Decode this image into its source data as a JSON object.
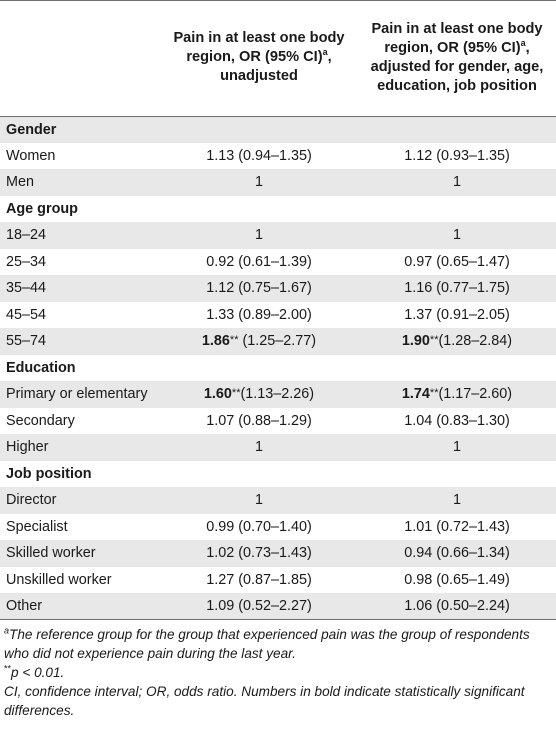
{
  "header": {
    "col1": "",
    "col2": "Pain in at least one body region, OR (95% CI)",
    "col2_sup": "a",
    "col2_tail": ", unadjusted",
    "col3": "Pain in at least one body region, OR (95% CI)",
    "col3_sup": "a",
    "col3_tail": ", adjusted for gender, age, education, job position"
  },
  "rows": [
    {
      "type": "section",
      "label": "Gender",
      "shade": true
    },
    {
      "type": "row",
      "label": "Women",
      "v1": "1.13 (0.94–1.35)",
      "v2": "1.12 (0.93–1.35)",
      "shade": false
    },
    {
      "type": "row",
      "label": "Men",
      "v1": "1",
      "v2": "1",
      "shade": true
    },
    {
      "type": "section",
      "label": "Age group",
      "shade": false
    },
    {
      "type": "row",
      "label": "18–24",
      "v1": "1",
      "v2": "1",
      "shade": true
    },
    {
      "type": "row",
      "label": "25–34",
      "v1": "0.92 (0.61–1.39)",
      "v2": "0.97 (0.65–1.47)",
      "shade": false
    },
    {
      "type": "row",
      "label": "35–44",
      "v1": "1.12 (0.75–1.67)",
      "v2": "1.16 (0.77–1.75)",
      "shade": true
    },
    {
      "type": "row",
      "label": "45–54",
      "v1": "1.33 (0.89–2.00)",
      "v2": "1.37 (0.91–2.05)",
      "shade": false
    },
    {
      "type": "sig",
      "label": "55–74",
      "v1b": "1.86",
      "v1s": "**",
      "v1r": " (1.25–2.77)",
      "v2b": "1.90",
      "v2s": "**",
      "v2r": "(1.28–2.84)",
      "shade": true
    },
    {
      "type": "section",
      "label": "Education",
      "shade": false
    },
    {
      "type": "sig",
      "label": "Primary or elementary",
      "v1b": "1.60",
      "v1s": "**",
      "v1r": "(1.13–2.26)",
      "v2b": "1.74",
      "v2s": "**",
      "v2r": "(1.17–2.60)",
      "shade": true
    },
    {
      "type": "row",
      "label": "Secondary",
      "v1": "1.07 (0.88–1.29)",
      "v2": "1.04 (0.83–1.30)",
      "shade": false
    },
    {
      "type": "row",
      "label": "Higher",
      "v1": "1",
      "v2": "1",
      "shade": true
    },
    {
      "type": "section",
      "label": "Job position",
      "shade": false
    },
    {
      "type": "row",
      "label": "Director",
      "v1": "1",
      "v2": "1",
      "shade": true
    },
    {
      "type": "row",
      "label": "Specialist",
      "v1": "0.99 (0.70–1.40)",
      "v2": "1.01 (0.72–1.43)",
      "shade": false
    },
    {
      "type": "row",
      "label": "Skilled worker",
      "v1": "1.02 (0.73–1.43)",
      "v2": "0.94 (0.66–1.34)",
      "shade": true
    },
    {
      "type": "row",
      "label": "Unskilled worker",
      "v1": "1.27 (0.87–1.85)",
      "v2": "0.98 (0.65–1.49)",
      "shade": false
    },
    {
      "type": "row",
      "label": "Other",
      "v1": "1.09 (0.52–2.27)",
      "v2": "1.06 (0.50–2.24)",
      "shade": true
    }
  ],
  "notes": {
    "a_sup": "a",
    "a_text": "The reference group for the group that experienced pain was the group of respondents who did not experience pain during the last year.",
    "p_stars": "**",
    "p_text": "p < 0.01.",
    "abbrev": "CI, confidence interval; OR, odds ratio. Numbers in bold indicate statistically significant differences."
  }
}
